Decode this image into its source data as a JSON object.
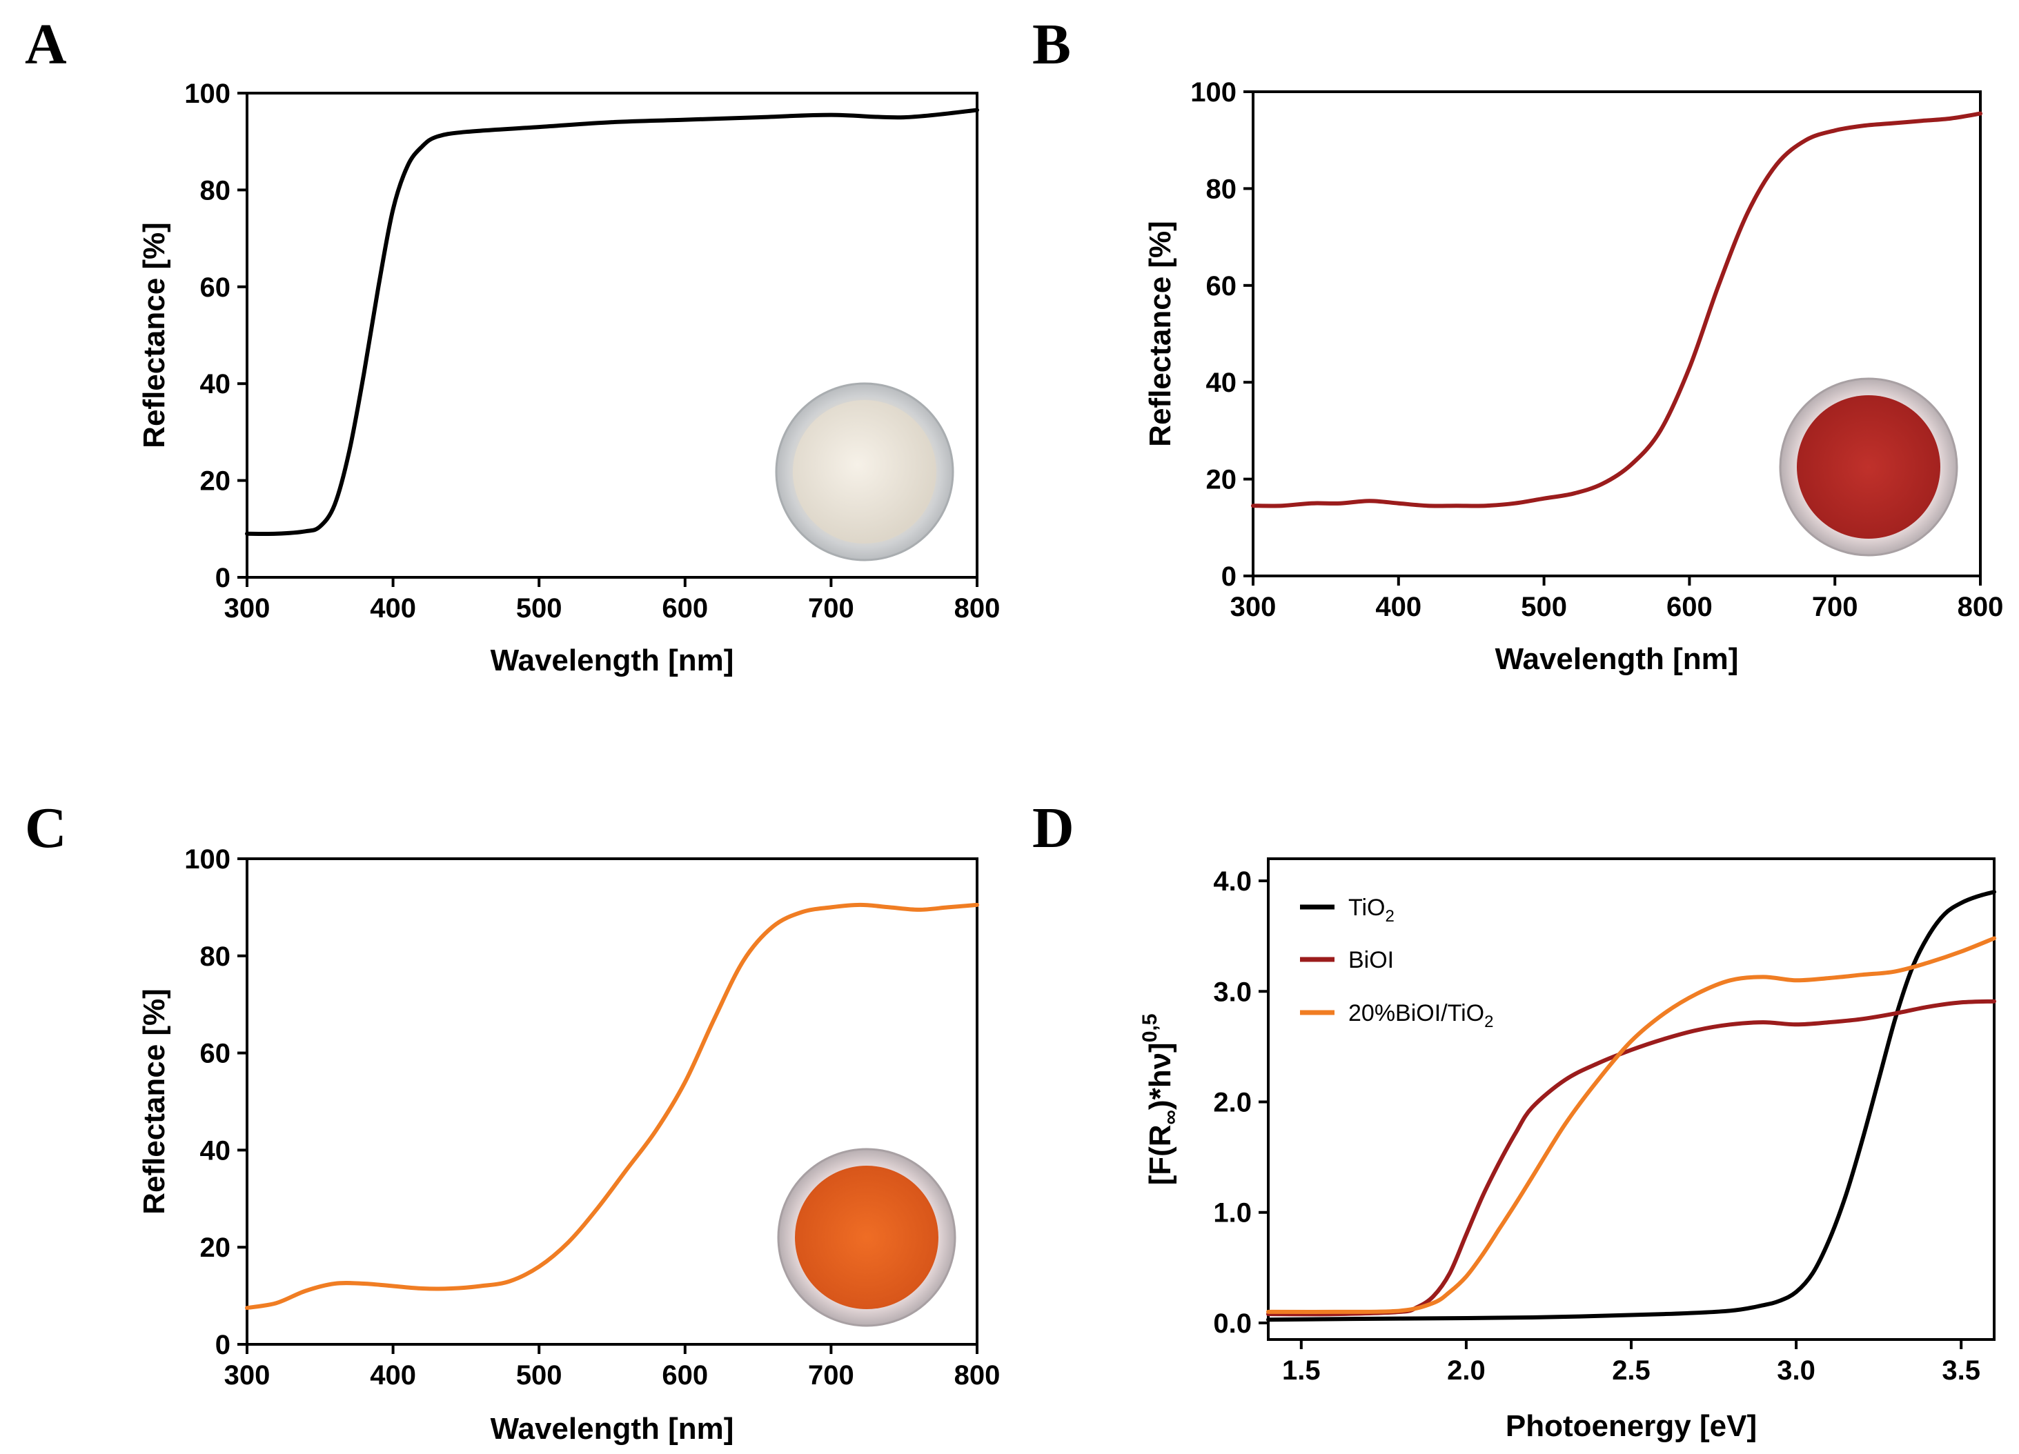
{
  "chart_data": [
    {
      "panel": "A",
      "type": "line",
      "xlabel": "Wavelength [nm]",
      "ylabel": "Reflectance [%]",
      "xlim": [
        300,
        800
      ],
      "ylim": [
        0,
        100
      ],
      "xticks": [
        300,
        400,
        500,
        600,
        700,
        800
      ],
      "yticks": [
        0,
        20,
        40,
        60,
        80,
        100
      ],
      "grid": false,
      "inset": "white powder sample photo (bottom-right)",
      "series": [
        {
          "name": "TiO2",
          "color": "#000000",
          "x": [
            300,
            320,
            340,
            350,
            360,
            370,
            380,
            390,
            400,
            410,
            420,
            430,
            450,
            500,
            550,
            600,
            650,
            700,
            750,
            800
          ],
          "y": [
            9,
            9,
            9.5,
            10.5,
            15,
            26,
            42,
            60,
            76,
            85,
            89,
            91,
            92,
            93,
            94,
            94.5,
            95,
            95.5,
            95,
            96.5
          ]
        }
      ]
    },
    {
      "panel": "B",
      "type": "line",
      "xlabel": "Wavelength [nm]",
      "ylabel": "Reflectance [%]",
      "xlim": [
        300,
        800
      ],
      "ylim": [
        0,
        100
      ],
      "xticks": [
        300,
        400,
        500,
        600,
        700,
        800
      ],
      "yticks": [
        0,
        20,
        40,
        60,
        80,
        100
      ],
      "grid": false,
      "inset": "red powder sample photo (bottom-right)",
      "series": [
        {
          "name": "BiOI",
          "color": "#9b1c1c",
          "x": [
            300,
            320,
            340,
            360,
            380,
            400,
            420,
            440,
            460,
            480,
            500,
            520,
            540,
            560,
            580,
            600,
            620,
            640,
            660,
            680,
            700,
            720,
            740,
            760,
            780,
            800
          ],
          "y": [
            14.5,
            14.5,
            15,
            15,
            15.5,
            15,
            14.5,
            14.5,
            14.5,
            15,
            16,
            17,
            19,
            23,
            30,
            43,
            60,
            75,
            85,
            90,
            92,
            93,
            93.5,
            94,
            94.5,
            95.5
          ]
        }
      ]
    },
    {
      "panel": "C",
      "type": "line",
      "xlabel": "Wavelength [nm]",
      "ylabel": "Reflectance [%]",
      "xlim": [
        300,
        800
      ],
      "ylim": [
        0,
        100
      ],
      "xticks": [
        300,
        400,
        500,
        600,
        700,
        800
      ],
      "yticks": [
        0,
        20,
        40,
        60,
        80,
        100
      ],
      "grid": false,
      "inset": "orange powder sample photo (bottom-right)",
      "series": [
        {
          "name": "20%BiOI/TiO2",
          "color": "#f07d23",
          "x": [
            300,
            320,
            340,
            360,
            380,
            400,
            420,
            440,
            460,
            480,
            500,
            520,
            540,
            560,
            580,
            600,
            620,
            640,
            660,
            680,
            700,
            720,
            740,
            760,
            780,
            800
          ],
          "y": [
            7.5,
            8.5,
            11,
            12.5,
            12.5,
            12,
            11.5,
            11.5,
            12,
            13,
            16,
            21,
            28,
            36,
            44,
            54,
            67,
            79,
            86,
            89,
            90,
            90.5,
            90,
            89.5,
            90,
            90.5
          ]
        }
      ]
    },
    {
      "panel": "D",
      "type": "line",
      "xlabel": "Photoenergy [eV]",
      "ylabel_parts": [
        "[F(R",
        "∞",
        ")*hν]",
        "0,5"
      ],
      "xlim": [
        1.4,
        3.6
      ],
      "ylim": [
        -0.15,
        4.2
      ],
      "xticks": [
        "1.5",
        "2.0",
        "2.5",
        "3.0",
        "3.5"
      ],
      "yticks": [
        "0.0",
        "1.0",
        "2.0",
        "3.0",
        "4.0"
      ],
      "grid": false,
      "legend_position": "top-left",
      "series": [
        {
          "name": "TiO",
          "name_sub": "2",
          "color": "#000000",
          "x": [
            1.4,
            1.8,
            2.2,
            2.6,
            2.8,
            2.9,
            2.95,
            3.0,
            3.05,
            3.1,
            3.15,
            3.2,
            3.25,
            3.3,
            3.35,
            3.4,
            3.45,
            3.5,
            3.55,
            3.6
          ],
          "y": [
            0.03,
            0.04,
            0.05,
            0.08,
            0.11,
            0.16,
            0.2,
            0.28,
            0.45,
            0.75,
            1.15,
            1.65,
            2.2,
            2.75,
            3.2,
            3.5,
            3.7,
            3.8,
            3.86,
            3.9
          ]
        },
        {
          "name": "BiOI",
          "color": "#9b1c1c",
          "x": [
            1.4,
            1.6,
            1.8,
            1.85,
            1.9,
            1.95,
            2.0,
            2.05,
            2.1,
            2.15,
            2.2,
            2.3,
            2.4,
            2.5,
            2.6,
            2.7,
            2.8,
            2.9,
            3.0,
            3.1,
            3.2,
            3.3,
            3.4,
            3.5,
            3.6
          ],
          "y": [
            0.08,
            0.08,
            0.1,
            0.14,
            0.24,
            0.45,
            0.8,
            1.15,
            1.45,
            1.72,
            1.95,
            2.2,
            2.35,
            2.47,
            2.57,
            2.65,
            2.7,
            2.72,
            2.7,
            2.72,
            2.75,
            2.8,
            2.86,
            2.9,
            2.91
          ]
        },
        {
          "name": "20%BiOI/TiO",
          "name_sub": "2",
          "color": "#f07d23",
          "x": [
            1.4,
            1.6,
            1.8,
            1.9,
            1.95,
            2.0,
            2.05,
            2.1,
            2.15,
            2.2,
            2.3,
            2.4,
            2.5,
            2.6,
            2.7,
            2.8,
            2.9,
            3.0,
            3.1,
            3.2,
            3.3,
            3.4,
            3.5,
            3.6
          ],
          "y": [
            0.1,
            0.1,
            0.11,
            0.18,
            0.28,
            0.42,
            0.62,
            0.85,
            1.08,
            1.32,
            1.8,
            2.2,
            2.55,
            2.8,
            2.98,
            3.1,
            3.13,
            3.1,
            3.12,
            3.15,
            3.18,
            3.26,
            3.36,
            3.48
          ]
        }
      ]
    }
  ],
  "panels": {
    "A": {
      "letter": "A"
    },
    "B": {
      "letter": "B"
    },
    "C": {
      "letter": "C"
    },
    "D": {
      "letter": "D"
    }
  }
}
